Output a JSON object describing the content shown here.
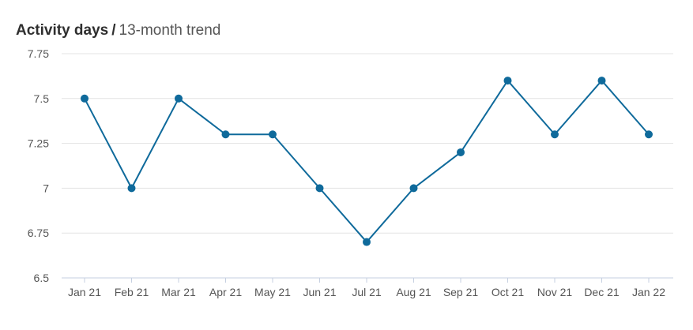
{
  "header": {
    "title": "Activity days",
    "separator": "/",
    "subtitle": "13-month trend"
  },
  "chart_data": {
    "type": "line",
    "title": "Activity days / 13-month trend",
    "categories": [
      "Jan 21",
      "Feb 21",
      "Mar 21",
      "Apr 21",
      "May 21",
      "Jun 21",
      "Jul 21",
      "Aug 21",
      "Sep 21",
      "Oct 21",
      "Nov 21",
      "Dec 21",
      "Jan 22"
    ],
    "series": [
      {
        "values": [
          7.5,
          7.0,
          7.5,
          7.3,
          7.3,
          7.0,
          6.7,
          7.0,
          7.2,
          7.6,
          7.3,
          7.6,
          7.3
        ]
      }
    ],
    "ylim": [
      6.5,
      7.75
    ],
    "yticks": [
      "6.5",
      "6.75",
      "7",
      "7.25",
      "7.5",
      "7.75"
    ],
    "grid": true,
    "colors": {
      "line": "#0f6a9b",
      "grid": "#e3e3e3",
      "axis": "#c5cfe0"
    }
  }
}
